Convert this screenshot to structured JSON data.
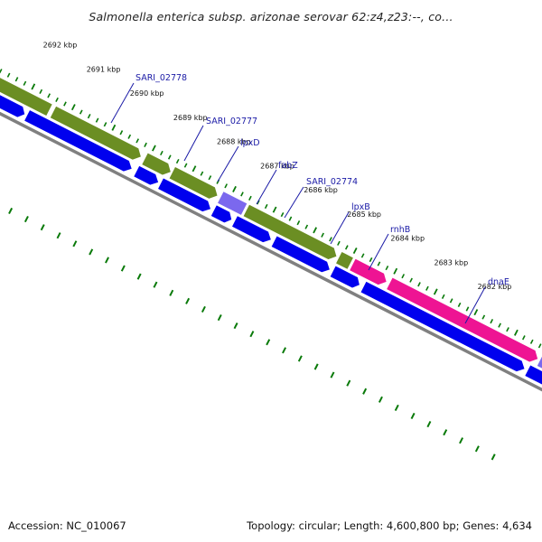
{
  "title": "Salmonella enterica subsp. arizonae serovar 62:z4,z23:--, co...",
  "footer": {
    "accession": "Accession: NC_010067",
    "summary": "Topology: circular; Length: 4,600,800 bp; Genes: 4,634"
  },
  "colors": {
    "cds_forward": "#6b8e23",
    "cds_reverse": "#0000ee",
    "rna": "#ee1493",
    "other": "#7b68ee",
    "backbone": "#808080",
    "ticks": "#0a7a0a",
    "gene_label": "#1a1aa6"
  },
  "kbp_labels": [
    "2692 kbp",
    "2691 kbp",
    "2690 kbp",
    "2689 kbp",
    "2688 kbp",
    "2687 kbp",
    "2686 kbp",
    "2685 kbp",
    "2684 kbp",
    "2683 kbp",
    "2682 kbp"
  ],
  "gene_labels": [
    "SARI_02778",
    "SARI_02777",
    "lpxD",
    "fabZ",
    "SARI_02774",
    "lpxB",
    "rnhB",
    "dnaE"
  ]
}
